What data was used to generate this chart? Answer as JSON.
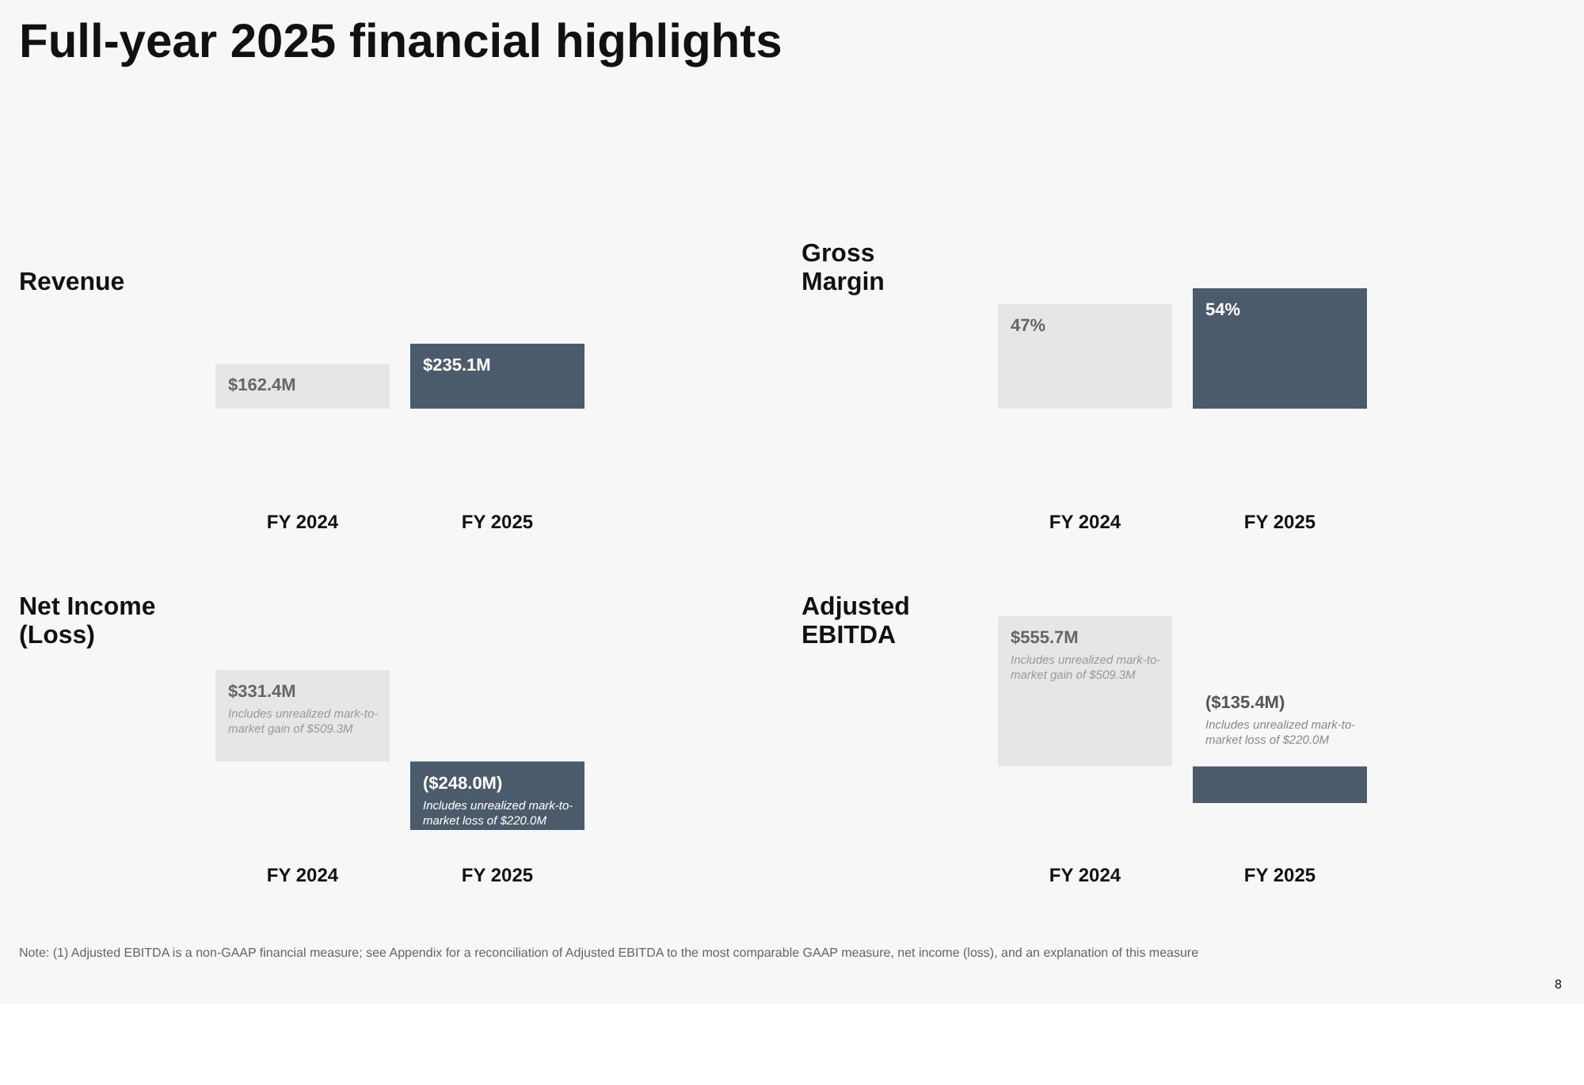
{
  "chart_data": [
    {
      "type": "bar",
      "title": "Revenue",
      "categories": [
        "FY 2024",
        "FY 2025"
      ],
      "values": [
        162.4,
        235.1
      ],
      "colors": [
        "#e6e6e6",
        "#4b5b6b"
      ],
      "value_labels": [
        "$162.4M",
        "$235.1M"
      ],
      "annotations": [
        "Full-year 2025 financial highlights"
      ]
    },
    {
      "type": "bar",
      "title": "Gross Margin",
      "categories": [
        "FY 2024",
        "FY 2025"
      ],
      "values": [
        47,
        54
      ],
      "colors": [
        "#e6e6e6",
        "#4b5b6b"
      ],
      "value_labels": [
        "47%",
        "54%"
      ]
    },
    {
      "type": "bar",
      "title": "Net Income (Loss)",
      "categories": [
        "FY 2024",
        "FY 2025"
      ],
      "values": [
        331.4,
        -248.0
      ],
      "colors": [
        "#e6e6e6",
        "#4b5b6b"
      ],
      "value_labels": [
        "$331.4M",
        "($248.0M)"
      ],
      "annotations": [
        "Includes unrealized mark-to-market gain of $509.3M",
        "Includes unrealized mark-to-market loss of $220.0M"
      ]
    },
    {
      "type": "bar",
      "title": "Adjusted EBITDA",
      "categories": [
        "FY 2024",
        "FY 2025"
      ],
      "values": [
        555.7,
        -135.4
      ],
      "colors": [
        "#e6e6e6",
        "#4b5b6b"
      ],
      "value_labels": [
        "$555.7M",
        "($135.4M)"
      ],
      "annotations": [
        "Includes unrealized mark-to-market gain of $509.3M",
        "Includes unrealized mark-to-market loss of $220.0M",
        "Note: (1) Adjusted EBITDA is a non-GAAP financial measure; see Appendix for a reconciliation of Adjusted EBITDA to the most comparable GAAP measure, net income (loss), and an explanation of this measure",
        "8"
      ]
    }
  ]
}
